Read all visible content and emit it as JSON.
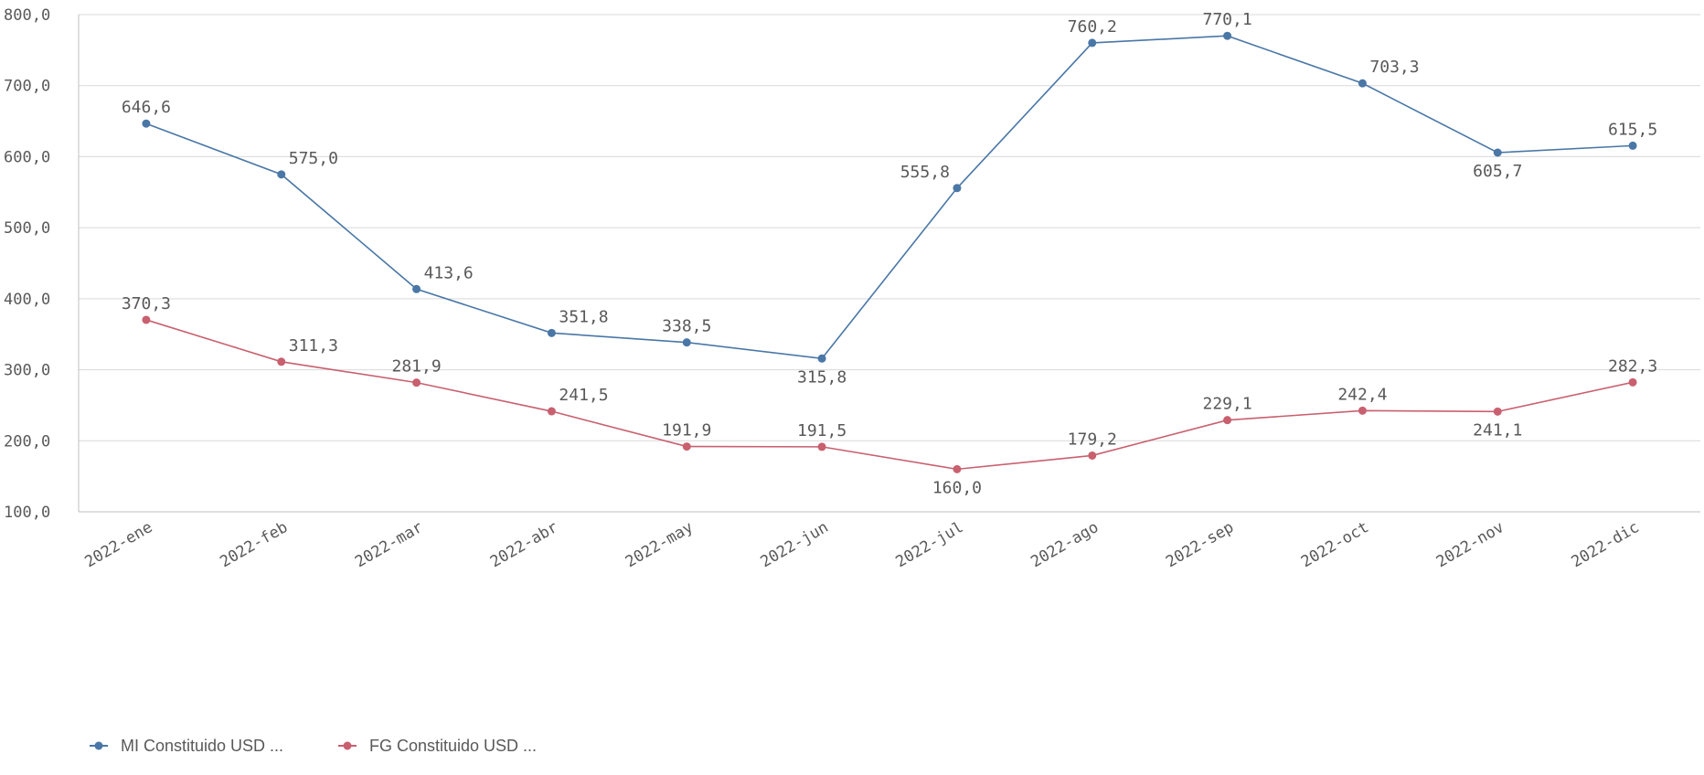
{
  "chart_data": {
    "type": "line",
    "categories": [
      "2022-ene",
      "2022-feb",
      "2022-mar",
      "2022-abr",
      "2022-may",
      "2022-jun",
      "2022-jul",
      "2022-ago",
      "2022-sep",
      "2022-oct",
      "2022-nov",
      "2022-dic"
    ],
    "ylim": [
      100,
      800
    ],
    "yticks": [
      100,
      200,
      300,
      400,
      500,
      600,
      700,
      800
    ],
    "ytick_labels": [
      "100,0",
      "200,0",
      "300,0",
      "400,0",
      "500,0",
      "600,0",
      "700,0",
      "800,0"
    ],
    "grid": true,
    "legend_position": "bottom-left",
    "series": [
      {
        "name": "MI Constituido USD ...",
        "color": "#4a77a6",
        "values": [
          646.6,
          575.0,
          413.6,
          351.8,
          338.5,
          315.8,
          555.8,
          760.2,
          770.1,
          703.3,
          605.7,
          615.5
        ],
        "labels": [
          "646,6",
          "575,0",
          "413,6",
          "351,8",
          "338,5",
          "315,8",
          "555,8",
          "760,2",
          "770,1",
          "703,3",
          "605,7",
          "615,5"
        ],
        "label_pos": [
          "above",
          "right",
          "right",
          "right",
          "above",
          "below",
          "left",
          "above",
          "above",
          "right",
          "below",
          "above"
        ]
      },
      {
        "name": "FG Constituido USD ...",
        "color": "#c8606f",
        "values": [
          370.3,
          311.3,
          281.9,
          241.5,
          191.9,
          191.5,
          160.0,
          179.2,
          229.1,
          242.4,
          241.1,
          282.3
        ],
        "labels": [
          "370,3",
          "311,3",
          "281,9",
          "241,5",
          "191,9",
          "191,5",
          "160,0",
          "179,2",
          "229,1",
          "242,4",
          "241,1",
          "282,3"
        ],
        "label_pos": [
          "above",
          "right",
          "above",
          "right",
          "above",
          "above",
          "below",
          "above",
          "above",
          "above",
          "below",
          "above"
        ]
      }
    ]
  }
}
